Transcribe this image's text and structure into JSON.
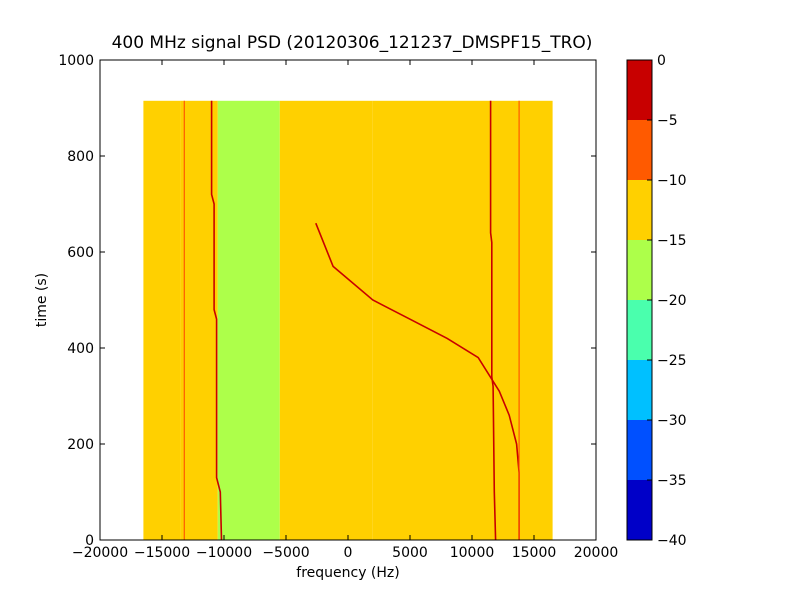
{
  "chart_data": {
    "type": "heatmap",
    "title": "400 MHz signal PSD (20120306_121237_DMSPF15_TRO)",
    "xlabel": "frequency (Hz)",
    "ylabel": "time (s)",
    "xlim": [
      -20000,
      20000
    ],
    "ylim": [
      0,
      1000
    ],
    "xticks": [
      -20000,
      -15000,
      -10000,
      -5000,
      0,
      5000,
      10000,
      15000,
      20000
    ],
    "yticks": [
      0,
      200,
      400,
      600,
      800,
      1000
    ],
    "data_extent": {
      "x": [
        -16500,
        16500
      ],
      "y": [
        0,
        915
      ]
    },
    "colorbar": {
      "ticks": [
        0,
        -5,
        -10,
        -15,
        -20,
        -25,
        -30,
        -35,
        -40
      ],
      "levels": [
        {
          "range": [
            -40,
            -35
          ],
          "color": "#0000c8"
        },
        {
          "range": [
            -35,
            -30
          ],
          "color": "#0050ff"
        },
        {
          "range": [
            -30,
            -25
          ],
          "color": "#00c0ff"
        },
        {
          "range": [
            -25,
            -20
          ],
          "color": "#4affad"
        },
        {
          "range": [
            -20,
            -15
          ],
          "color": "#adff4a"
        },
        {
          "range": [
            -15,
            -10
          ],
          "color": "#ffd000"
        },
        {
          "range": [
            -10,
            -5
          ],
          "color": "#ff5a00"
        },
        {
          "range": [
            -5,
            0
          ],
          "color": "#c80000"
        }
      ]
    },
    "bands": [
      {
        "x": [
          -16500,
          -13500
        ],
        "level": -15
      },
      {
        "x": [
          -13500,
          -10500
        ],
        "level": -12
      },
      {
        "x": [
          -10500,
          -5500
        ],
        "level": -17
      },
      {
        "x": [
          -5500,
          2000
        ],
        "level": -14
      },
      {
        "x": [
          2000,
          16500
        ],
        "level": -12
      }
    ],
    "signals": [
      {
        "level": -2,
        "points": [
          [
            -11000,
            915
          ],
          [
            -11000,
            720
          ],
          [
            -10800,
            700
          ],
          [
            -10800,
            480
          ],
          [
            -10600,
            460
          ],
          [
            -10600,
            130
          ],
          [
            -10300,
            100
          ],
          [
            -10200,
            0
          ]
        ]
      },
      {
        "level": -2,
        "points": [
          [
            11500,
            915
          ],
          [
            11500,
            640
          ],
          [
            11600,
            620
          ],
          [
            11600,
            340
          ],
          [
            11700,
            320
          ],
          [
            11800,
            100
          ],
          [
            11900,
            0
          ]
        ]
      },
      {
        "level": -2,
        "points": [
          [
            -2600,
            660
          ],
          [
            -1200,
            570
          ],
          [
            2000,
            500
          ],
          [
            5000,
            460
          ],
          [
            8000,
            420
          ],
          [
            10500,
            380
          ],
          [
            12200,
            310
          ],
          [
            13000,
            260
          ],
          [
            13600,
            200
          ],
          [
            13800,
            140
          ],
          [
            13800,
            0
          ]
        ]
      },
      {
        "level": -8,
        "points": [
          [
            -13200,
            915
          ],
          [
            -13200,
            0
          ]
        ]
      },
      {
        "level": -8,
        "points": [
          [
            13800,
            915
          ],
          [
            13800,
            0
          ]
        ]
      }
    ]
  }
}
